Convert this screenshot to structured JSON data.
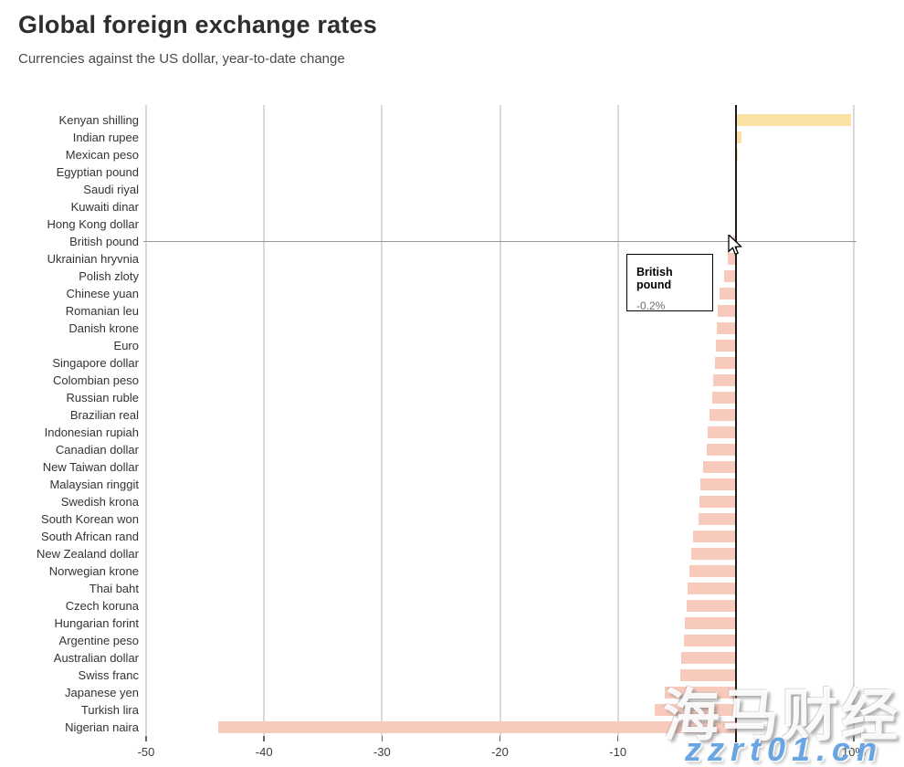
{
  "header": {
    "title": "Global foreign exchange rates",
    "subtitle": "Currencies against the US dollar, year-to-date change"
  },
  "chart_data": {
    "type": "bar",
    "orientation": "horizontal",
    "title": "Global foreign exchange rates",
    "subtitle": "Currencies against the US dollar, year-to-date change",
    "unit": "%",
    "xlim": [
      -50,
      10
    ],
    "grid": true,
    "xticks": {
      "values": [
        -50,
        -40,
        -30,
        -20,
        -10,
        0,
        10
      ],
      "labels": [
        "-50",
        "-40",
        "-30",
        "-20",
        "-10",
        "0",
        "10%"
      ]
    },
    "categories": [
      "Kenyan shilling",
      "Indian rupee",
      "Mexican peso",
      "Egyptian pound",
      "Saudi riyal",
      "Kuwaiti dinar",
      "Hong Kong dollar",
      "British pound",
      "Ukrainian hryvnia",
      "Polish zloty",
      "Chinese yuan",
      "Romanian leu",
      "Danish krone",
      "Euro",
      "Singapore dollar",
      "Colombian peso",
      "Russian ruble",
      "Brazilian real",
      "Indonesian rupiah",
      "Canadian dollar",
      "New Taiwan dollar",
      "Malaysian ringgit",
      "Swedish krona",
      "South Korean won",
      "South African rand",
      "New Zealand dollar",
      "Norwegian krone",
      "Thai baht",
      "Czech koruna",
      "Hungarian forint",
      "Argentine peso",
      "Australian dollar",
      "Swiss franc",
      "Japanese yen",
      "Turkish lira",
      "Nigerian naira"
    ],
    "values": [
      9.8,
      0.5,
      0.2,
      0.0,
      0.0,
      -0.1,
      -0.1,
      -0.2,
      -0.7,
      -1.0,
      -1.4,
      -1.5,
      -1.6,
      -1.7,
      -1.8,
      -1.9,
      -2.0,
      -2.2,
      -2.4,
      -2.5,
      -2.8,
      -3.0,
      -3.1,
      -3.2,
      -3.6,
      -3.8,
      -3.9,
      -4.1,
      -4.2,
      -4.3,
      -4.4,
      -4.6,
      -4.7,
      -6.0,
      -6.9,
      -43.9
    ],
    "positive_color": "#fbe2a4",
    "negative_color": "#f7cabc",
    "zero_line_color": "#1c1c1c",
    "legend": null
  },
  "hover": {
    "category": "British pound",
    "index": 7
  },
  "tooltip": {
    "title": "British pound",
    "value": "-0.2%"
  },
  "watermarks": {
    "primary": "海马财经",
    "secondary": "zzrt01.cn"
  }
}
